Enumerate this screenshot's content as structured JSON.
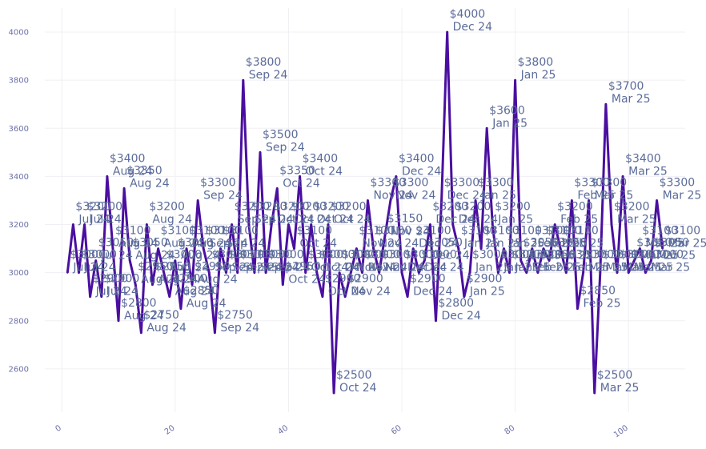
{
  "chart_data": {
    "type": "line",
    "grid": true,
    "legend": "none",
    "xlim": [
      -3,
      110
    ],
    "ylim": [
      2420,
      4100
    ],
    "xticks": [
      0,
      20,
      40,
      60,
      80,
      100
    ],
    "yticks": [
      2600,
      2800,
      3000,
      3200,
      3400,
      3600,
      3800,
      4000
    ],
    "line_color": "#4a0fa0",
    "label_color": "#5b6b9a",
    "tick_color": "#6b6fa8",
    "series": [
      {
        "x": [
          1,
          2,
          3,
          4,
          5,
          6,
          7,
          8,
          9,
          10,
          11,
          12,
          13,
          14,
          15,
          16,
          17,
          18,
          19,
          20,
          21,
          22,
          23,
          24,
          25,
          26,
          27,
          28,
          29,
          30,
          31,
          32,
          33,
          34,
          35,
          36,
          37,
          38,
          39,
          40,
          41,
          42,
          43,
          44,
          45,
          46,
          47,
          48,
          49,
          50,
          51,
          52,
          53,
          54,
          55,
          56,
          57,
          58,
          59,
          60,
          61,
          62,
          63,
          64,
          65,
          66,
          67,
          68,
          69,
          70,
          71,
          72,
          73,
          74,
          75,
          76,
          77,
          78,
          79,
          80,
          81,
          82,
          83,
          84,
          85,
          86,
          87,
          88,
          89,
          90,
          91,
          92,
          93,
          94,
          95,
          96,
          97,
          98,
          99,
          100,
          101,
          102,
          103,
          104,
          105,
          106
        ],
        "y": [
          3000,
          3200,
          3000,
          3200,
          2900,
          3050,
          2900,
          3400,
          3100,
          2800,
          3350,
          3050,
          2950,
          2750,
          3200,
          2950,
          3100,
          3000,
          2900,
          3050,
          2850,
          3100,
          2950,
          3300,
          3100,
          3000,
          2750,
          3100,
          3000,
          3200,
          3000,
          3800,
          3200,
          3000,
          3500,
          3000,
          3200,
          3350,
          2950,
          3200,
          3100,
          3400,
          3000,
          3200,
          3000,
          2900,
          3200,
          2500,
          3000,
          2900,
          3000,
          3100,
          3000,
          3300,
          3100,
          3000,
          3150,
          3300,
          3400,
          3000,
          2900,
          3100,
          3000,
          3050,
          3200,
          2800,
          3300,
          4000,
          3200,
          3100,
          2900,
          3000,
          3300,
          3100,
          3600,
          3200,
          3000,
          3100,
          3000,
          3800,
          3050,
          3000,
          3100,
          3000,
          3100,
          3050,
          3200,
          3100,
          3000,
          3300,
          2850,
          3000,
          3300,
          2500,
          3000,
          3700,
          3200,
          3000,
          3400,
          3000,
          3050,
          3100,
          3000,
          3050,
          3300,
          3100
        ],
        "labels": [
          [
            "$3000",
            "Jul 24"
          ],
          [
            "$3200",
            "Jul 24"
          ],
          [
            "$3000",
            "Jul 24"
          ],
          [
            "$3200",
            "Jul 24"
          ],
          [
            "$2900",
            "Jul 24"
          ],
          [
            "$3050",
            "Jul 24"
          ],
          [
            "$2900",
            "Jul 24"
          ],
          [
            "$3400",
            "Aug 24"
          ],
          [
            "$3100",
            "Aug 24"
          ],
          [
            "$2800",
            "Aug 24"
          ],
          [
            "$3350",
            "Aug 24"
          ],
          [
            "$3050",
            "Aug 24"
          ],
          [
            "$2950",
            "Aug 24"
          ],
          [
            "$2750",
            "Aug 24"
          ],
          [
            "$3200",
            "Aug 24"
          ],
          [
            "$2950",
            "Aug 24"
          ],
          [
            "$3100",
            "Aug 24"
          ],
          [
            "$3000",
            "Aug 24"
          ],
          [
            "$2900",
            "Aug 24"
          ],
          [
            "$3050",
            "Aug 24"
          ],
          [
            "$2850",
            "Aug 24"
          ],
          [
            "$3100",
            "Aug 24"
          ],
          [
            "$2950",
            "Aug 24"
          ],
          [
            "$3300",
            "Sep 24"
          ],
          [
            "$3100",
            "Sep 24"
          ],
          [
            "$3000",
            "Sep 24"
          ],
          [
            "$2750",
            "Sep 24"
          ],
          [
            "$3100",
            "Sep 24"
          ],
          [
            "$3000",
            "Sep 24"
          ],
          [
            "$3200",
            "Sep 24"
          ],
          [
            "$3000",
            "Sep 24"
          ],
          [
            "$3800",
            "Sep 24"
          ],
          [
            "$3200",
            "Sep 24"
          ],
          [
            "$3000",
            "Sep 24"
          ],
          [
            "$3500",
            "Sep 24"
          ],
          [
            "$3000",
            "Sep 24"
          ],
          [
            "$3200",
            "Oct 24"
          ],
          [
            "$3350",
            "Oct 24"
          ],
          [
            "$2950",
            "Oct 24"
          ],
          [
            "$3200",
            "Oct 24"
          ],
          [
            "$3100",
            "Oct 24"
          ],
          [
            "$3400",
            "Oct 24"
          ],
          [
            "$3000",
            "Oct 24"
          ],
          [
            "$3200",
            "Oct 24"
          ],
          [
            "$3000",
            "Oct 24"
          ],
          [
            "$2900",
            "Oct 24"
          ],
          [
            "$3200",
            "Oct 24"
          ],
          [
            "$2500",
            "Oct 24"
          ],
          [
            "$3000",
            "Oct 24"
          ],
          [
            "$2900",
            "Nov 24"
          ],
          [
            "$3000",
            "Nov 24"
          ],
          [
            "$3100",
            "Nov 24"
          ],
          [
            "$3000",
            "Nov 24"
          ],
          [
            "$3300",
            "Nov 24"
          ],
          [
            "$3100",
            "Nov 24"
          ],
          [
            "$3000",
            "Nov 24"
          ],
          [
            "$3150",
            "Nov 24"
          ],
          [
            "$3300",
            "Nov 24"
          ],
          [
            "$3400",
            "Dec 24"
          ],
          [
            "$3000",
            "Dec 24"
          ],
          [
            "$2900",
            "Dec 24"
          ],
          [
            "$3100",
            "Dec 24"
          ],
          [
            "$3000",
            "Dec 24"
          ],
          [
            "$3050",
            "Dec 24"
          ],
          [
            "$3200",
            "Dec 24"
          ],
          [
            "$2800",
            "Dec 24"
          ],
          [
            "$3300",
            "Dec 24"
          ],
          [
            "$4000",
            "Dec 24"
          ],
          [
            "$3200",
            "Dec 24"
          ],
          [
            "$3100",
            "Jan 25"
          ],
          [
            "$2900",
            "Jan 25"
          ],
          [
            "$3000",
            "Jan 25"
          ],
          [
            "$3300",
            "Jan 25"
          ],
          [
            "$3100",
            "Jan 25"
          ],
          [
            "$3600",
            "Jan 25"
          ],
          [
            "$3200",
            "Jan 25"
          ],
          [
            "$3000",
            "Jan 25"
          ],
          [
            "$3100",
            "Jan 25"
          ],
          [
            "$3000",
            "Jan 25"
          ],
          [
            "$3800",
            "Jan 25"
          ],
          [
            "$3050",
            "Jan 25"
          ],
          [
            "$3000",
            "Feb 25"
          ],
          [
            "$3100",
            "Feb 25"
          ],
          [
            "$3000",
            "Feb 25"
          ],
          [
            "$3100",
            "Feb 25"
          ],
          [
            "$3050",
            "Feb 25"
          ],
          [
            "$3200",
            "Feb 25"
          ],
          [
            "$3100",
            "Feb 25"
          ],
          [
            "$3000",
            "Feb 25"
          ],
          [
            "$3300",
            "Feb 25"
          ],
          [
            "$2850",
            "Feb 25"
          ],
          [
            "$3000",
            "Mar 25"
          ],
          [
            "$3300",
            "Mar 25"
          ],
          [
            "$2500",
            "Mar 25"
          ],
          [
            "$3000",
            "Mar 25"
          ],
          [
            "$3700",
            "Mar 25"
          ],
          [
            "$3200",
            "Mar 25"
          ],
          [
            "$3000",
            "Mar 25"
          ],
          [
            "$3400",
            "Mar 25"
          ],
          [
            "$3000",
            "Mar 25"
          ],
          [
            "$3050",
            "Mar 25"
          ],
          [
            "$3100",
            "Mar 25"
          ],
          [
            "$3000",
            "Mar 25"
          ],
          [
            "$3050",
            "Mar 25"
          ],
          [
            "$3300",
            "Mar 25"
          ],
          [
            "$3100",
            "Mar 25"
          ]
        ]
      }
    ]
  }
}
